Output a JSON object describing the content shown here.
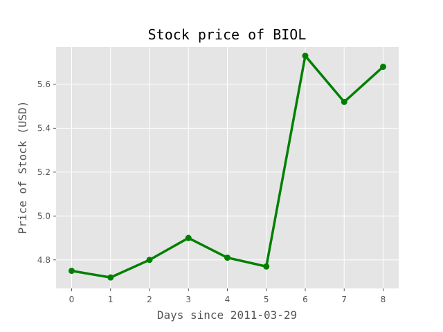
{
  "chart_data": {
    "type": "line",
    "title": "Stock price of BIOL",
    "xlabel": "Days since 2011-03-29",
    "ylabel": "Price of Stock (USD)",
    "x": [
      0,
      1,
      2,
      3,
      4,
      5,
      6,
      7,
      8
    ],
    "series": [
      {
        "values": [
          4.75,
          4.72,
          4.8,
          4.9,
          4.81,
          4.77,
          5.73,
          5.52,
          5.68
        ],
        "color": "#008000"
      }
    ],
    "xticks": [
      0,
      1,
      2,
      3,
      4,
      5,
      6,
      7,
      8
    ],
    "yticks": [
      4.8,
      5.0,
      5.2,
      5.4,
      5.6
    ],
    "xlim": [
      -0.4,
      8.4
    ],
    "ylim": [
      4.67,
      5.77
    ],
    "grid": true,
    "background": "#e5e5e5",
    "gridColor": "#ffffff"
  }
}
